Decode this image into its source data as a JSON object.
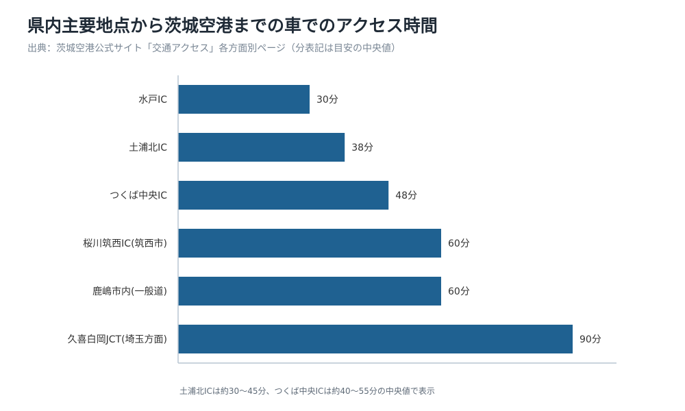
{
  "title": "県内主要地点から茨城空港までの車でのアクセス時間",
  "subtitle": "出典：茨城空港公式サイト「交通アクセス」各方面別ページ（分表記は目安の中央値）",
  "note": "土浦北ICは約30〜45分、つくば中央ICは約40〜55分の中央値で表示",
  "colors": {
    "bar": "#1f6191",
    "axis": "#b9c6d2",
    "label": "#333333"
  },
  "chart_data": {
    "type": "bar",
    "orientation": "horizontal",
    "categories": [
      "水戸IC",
      "土浦北IC",
      "つくば中央IC",
      "桜川筑西IC(筑西市)",
      "鹿嶋市内(一般道)",
      "久喜白岡JCT(埼玉方面)"
    ],
    "values": [
      30,
      38,
      48,
      60,
      60,
      90
    ],
    "value_labels": [
      "30分",
      "38分",
      "48分",
      "60分",
      "60分",
      "90分"
    ],
    "unit": "分",
    "xlim": [
      0,
      100
    ],
    "grid": false,
    "legend": "none"
  }
}
